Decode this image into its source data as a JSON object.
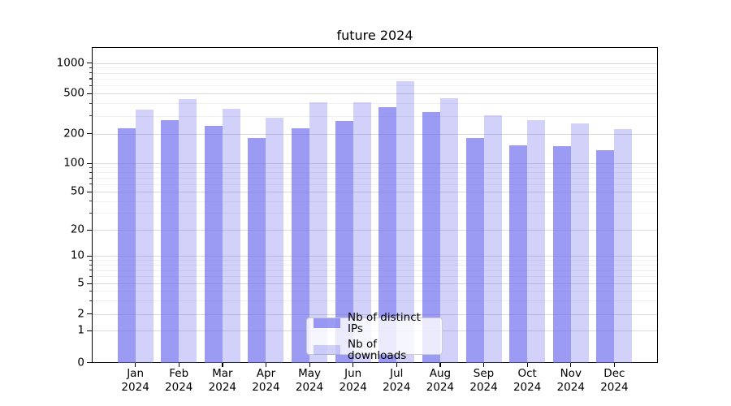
{
  "chart_data": {
    "type": "bar",
    "title": "future 2024",
    "categories": [
      "Jan\n2024",
      "Feb\n2024",
      "Mar\n2024",
      "Apr\n2024",
      "May\n2024",
      "Jun\n2024",
      "Jul\n2024",
      "Aug\n2024",
      "Sep\n2024",
      "Oct\n2024",
      "Nov\n2024",
      "Dec\n2024"
    ],
    "series": [
      {
        "name": "Nb of distinct IPs",
        "values": [
          230,
          275,
          245,
          185,
          232,
          270,
          370,
          335,
          182,
          156,
          152,
          138
        ]
      },
      {
        "name": "Nb of downloads",
        "values": [
          352,
          445,
          360,
          295,
          415,
          415,
          670,
          460,
          308,
          278,
          256,
          225
        ]
      }
    ],
    "yscale": "symlog",
    "yticks": [
      0,
      1,
      2,
      5,
      10,
      20,
      50,
      100,
      200,
      500,
      1000
    ],
    "yminor_ticks": [
      3,
      4,
      6,
      7,
      8,
      9,
      30,
      40,
      60,
      70,
      80,
      90,
      300,
      400,
      600,
      700,
      800,
      900
    ],
    "xlabel": "",
    "ylabel": "",
    "grid": true,
    "legend_position": "lower center",
    "colors": {
      "bar_base": "#6666ee",
      "distinct_ips_alpha": 0.65,
      "downloads_alpha": 0.3,
      "grid_major": "#d9d9d9",
      "grid_minor": "#f0f0f0",
      "axis": "#000000"
    }
  }
}
